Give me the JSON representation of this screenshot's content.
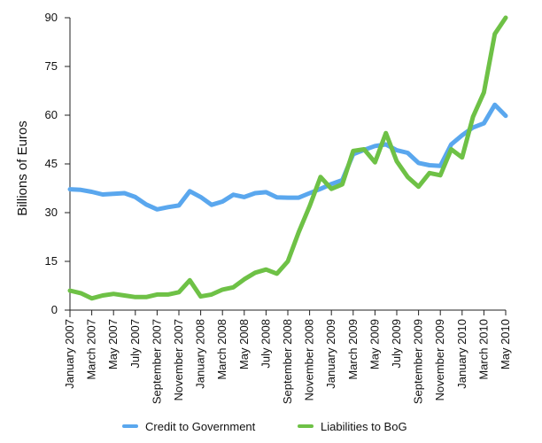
{
  "chart_data": {
    "type": "line",
    "title": "",
    "xlabel": "",
    "ylabel": "Billions of Euros",
    "ylim": [
      0,
      90
    ],
    "yticks": [
      "0",
      "15",
      "30",
      "45",
      "60",
      "75",
      "90"
    ],
    "grid": false,
    "legend": "bottom",
    "categories": [
      "Jan 2007",
      "Feb 2007",
      "Mar 2007",
      "Apr 2007",
      "May 2007",
      "Jun 2007",
      "Jul 2007",
      "Aug 2007",
      "Sep 2007",
      "Oct 2007",
      "Nov 2007",
      "Dec 2007",
      "Jan 2008",
      "Feb 2008",
      "Mar 2008",
      "Apr 2008",
      "May 2008",
      "Jun 2008",
      "Jul 2008",
      "Aug 2008",
      "Sep 2008",
      "Oct 2008",
      "Nov 2008",
      "Dec 2008",
      "Jan 2009",
      "Feb 2009",
      "Mar 2009",
      "Apr 2009",
      "May 2009",
      "Jun 2009",
      "Jul 2009",
      "Aug 2009",
      "Sep 2009",
      "Oct 2009",
      "Nov 2009",
      "Dec 2009",
      "Jan 2010",
      "Feb 2010",
      "Mar 2010",
      "Apr 2010",
      "May 2010"
    ],
    "xtick_labels": [
      {
        "index": 0,
        "label": "January 2007"
      },
      {
        "index": 2,
        "label": "March 2007"
      },
      {
        "index": 4,
        "label": "May 2007"
      },
      {
        "index": 6,
        "label": "July 2007"
      },
      {
        "index": 8,
        "label": "September 2007"
      },
      {
        "index": 10,
        "label": "November 2007"
      },
      {
        "index": 12,
        "label": "January 2008"
      },
      {
        "index": 14,
        "label": "March 2008"
      },
      {
        "index": 16,
        "label": "May 2008"
      },
      {
        "index": 18,
        "label": "July 2008"
      },
      {
        "index": 20,
        "label": "September 2008"
      },
      {
        "index": 22,
        "label": "November 2008"
      },
      {
        "index": 24,
        "label": "January 2009"
      },
      {
        "index": 26,
        "label": "March 2009"
      },
      {
        "index": 28,
        "label": "May 2009"
      },
      {
        "index": 30,
        "label": "July 2009"
      },
      {
        "index": 32,
        "label": "September 2009"
      },
      {
        "index": 34,
        "label": "November 2009"
      },
      {
        "index": 36,
        "label": "January 2010"
      },
      {
        "index": 38,
        "label": "March 2010"
      },
      {
        "index": 40,
        "label": "May 2010"
      }
    ],
    "series": [
      {
        "name": "Credit to Government",
        "color": "#5aa7ee",
        "values": [
          37.2,
          37.0,
          36.4,
          35.6,
          35.8,
          36.0,
          34.8,
          32.5,
          31.0,
          31.7,
          32.2,
          36.6,
          34.8,
          32.4,
          33.4,
          35.5,
          34.8,
          36.0,
          36.3,
          34.7,
          34.6,
          34.6,
          36.0,
          37.3,
          38.8,
          40.0,
          48.0,
          49.3,
          50.5,
          51.0,
          49.2,
          48.4,
          45.3,
          44.6,
          44.4,
          51.0,
          53.8,
          56.2,
          57.5,
          63.2,
          59.8
        ]
      },
      {
        "name": "Liabilities to BoG",
        "color": "#6ec146",
        "values": [
          6.0,
          5.2,
          3.6,
          4.5,
          5.0,
          4.5,
          4.0,
          4.0,
          4.8,
          4.8,
          5.5,
          9.2,
          4.2,
          4.8,
          6.3,
          7.0,
          9.5,
          11.5,
          12.5,
          11.2,
          15.0,
          24.0,
          32.0,
          41.0,
          37.3,
          38.7,
          49.0,
          49.5,
          45.5,
          54.5,
          45.8,
          41.0,
          38.0,
          42.2,
          41.5,
          49.5,
          47.0,
          59.5,
          67.0,
          85.0,
          90.0
        ]
      }
    ]
  }
}
